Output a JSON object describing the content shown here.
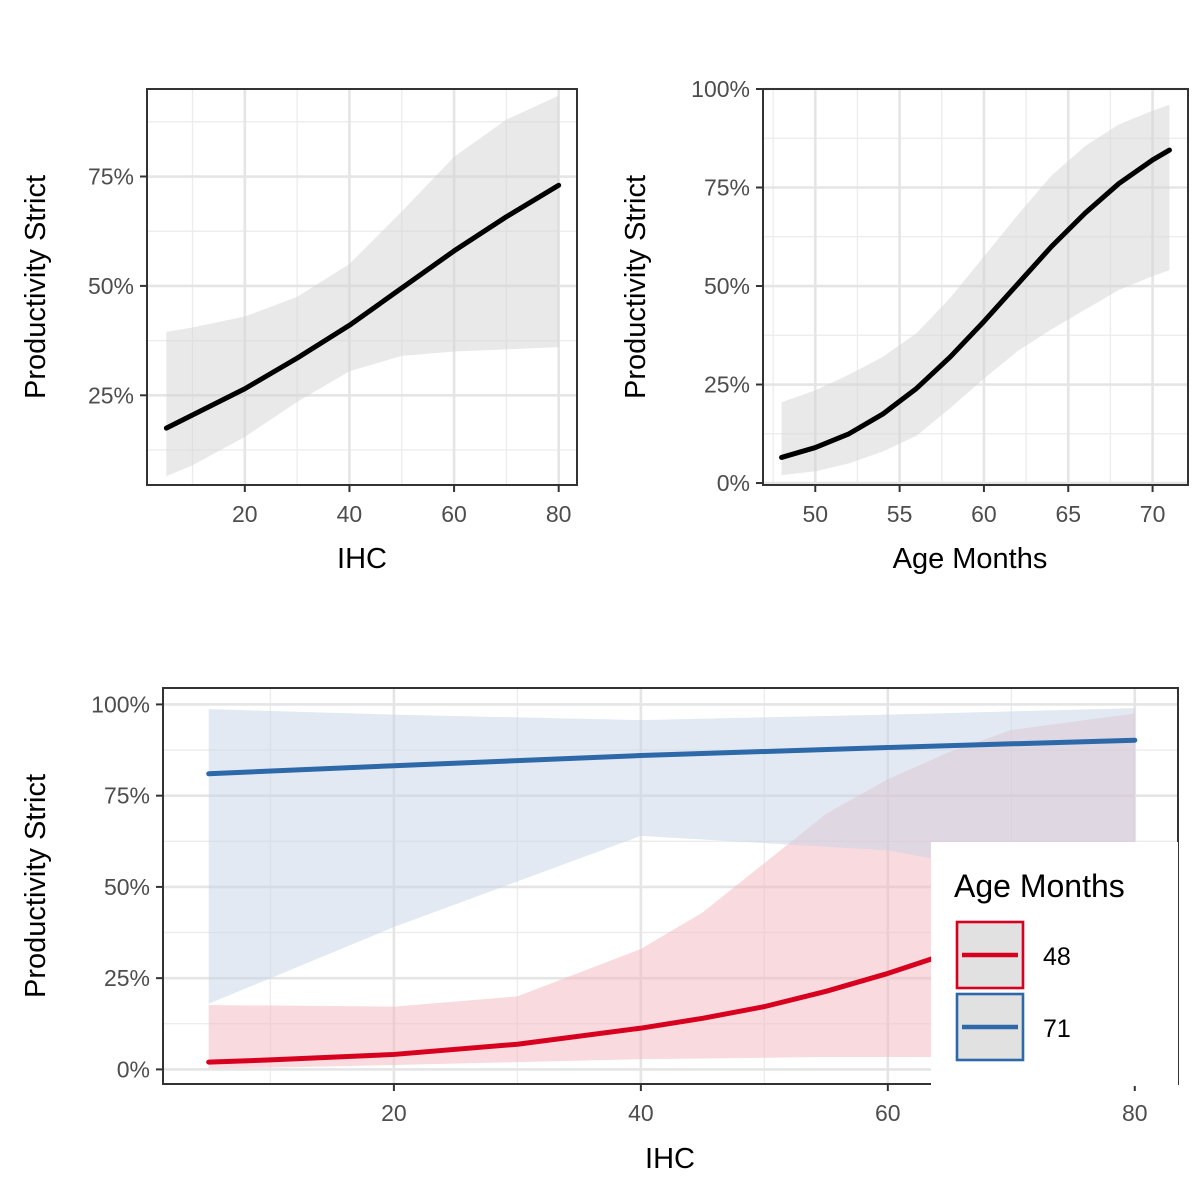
{
  "chart_data": [
    {
      "type": "line",
      "xlabel": "IHC",
      "ylabel": "Productivity Strict",
      "xlim": [
        1.3,
        83.5
      ],
      "ylim": [
        0.045,
        0.95
      ],
      "x_ticks": [
        20,
        40,
        60,
        80
      ],
      "x_tick_labels": [
        "20",
        "40",
        "60",
        "80"
      ],
      "y_ticks": [
        0.25,
        0.5,
        0.75
      ],
      "y_tick_labels": [
        "25%",
        "50%",
        "75%"
      ],
      "grid": true,
      "legend": "none",
      "series": [
        {
          "color": "#000000",
          "band_color": "#d3d3d3",
          "x": [
            5,
            10,
            20,
            30,
            40,
            50,
            60,
            70,
            80
          ],
          "y": [
            0.175,
            0.205,
            0.265,
            0.335,
            0.41,
            0.495,
            0.58,
            0.658,
            0.73
          ],
          "lower": [
            0.065,
            0.09,
            0.155,
            0.235,
            0.305,
            0.34,
            0.35,
            0.355,
            0.36
          ],
          "upper": [
            0.395,
            0.405,
            0.43,
            0.475,
            0.55,
            0.67,
            0.795,
            0.88,
            0.935
          ]
        }
      ]
    },
    {
      "type": "line",
      "xlabel": "Age Months",
      "ylabel": "Productivity Strict",
      "xlim": [
        46.9,
        72.1
      ],
      "ylim": [
        -0.005,
        1.0
      ],
      "x_ticks": [
        50,
        55,
        60,
        65,
        70
      ],
      "x_tick_labels": [
        "50",
        "55",
        "60",
        "65",
        "70"
      ],
      "y_ticks": [
        0,
        0.25,
        0.5,
        0.75,
        1.0
      ],
      "y_tick_labels": [
        "0%",
        "25%",
        "50%",
        "75%",
        "100%"
      ],
      "grid": true,
      "legend": "none",
      "series": [
        {
          "color": "#000000",
          "band_color": "#d3d3d3",
          "x": [
            48,
            50,
            52,
            54,
            56,
            58,
            60,
            62,
            64,
            66,
            68,
            70,
            71
          ],
          "y": [
            0.065,
            0.09,
            0.125,
            0.175,
            0.24,
            0.32,
            0.41,
            0.505,
            0.6,
            0.685,
            0.76,
            0.82,
            0.845
          ],
          "lower": [
            0.02,
            0.03,
            0.05,
            0.08,
            0.12,
            0.19,
            0.265,
            0.335,
            0.39,
            0.44,
            0.49,
            0.525,
            0.54
          ],
          "upper": [
            0.205,
            0.235,
            0.275,
            0.32,
            0.38,
            0.47,
            0.575,
            0.68,
            0.78,
            0.855,
            0.91,
            0.945,
            0.96
          ]
        }
      ]
    },
    {
      "type": "line",
      "xlabel": "IHC",
      "ylabel": "Productivity Strict",
      "xlim": [
        1.3,
        83.5
      ],
      "ylim": [
        -0.04,
        1.045
      ],
      "x_ticks": [
        20,
        40,
        60,
        80
      ],
      "x_tick_labels": [
        "20",
        "40",
        "60",
        "80"
      ],
      "y_ticks": [
        0,
        0.25,
        0.5,
        0.75,
        1.0
      ],
      "y_tick_labels": [
        "0%",
        "25%",
        "50%",
        "75%",
        "100%"
      ],
      "grid": true,
      "legend": "right",
      "legend_title": "Age Months",
      "series": [
        {
          "name": "48",
          "color": "#d7001e",
          "band_color": "#f4b5bd",
          "x": [
            5,
            10,
            20,
            30,
            40,
            45,
            50,
            55,
            60,
            65,
            70,
            80
          ],
          "y": [
            0.02,
            0.026,
            0.041,
            0.069,
            0.113,
            0.14,
            0.172,
            0.214,
            0.263,
            0.319,
            0.38,
            0.52
          ],
          "lower": [
            0.003,
            0.005,
            0.012,
            0.02,
            0.028,
            0.03,
            0.032,
            0.034,
            0.034,
            0.034,
            0.034,
            0.034
          ],
          "upper": [
            0.176,
            0.175,
            0.172,
            0.2,
            0.33,
            0.43,
            0.565,
            0.7,
            0.795,
            0.87,
            0.93,
            0.975
          ]
        },
        {
          "name": "71",
          "color": "#2d68a8",
          "band_color": "#c5d4e6",
          "x": [
            5,
            20,
            40,
            60,
            80
          ],
          "y": [
            0.81,
            0.832,
            0.86,
            0.882,
            0.902
          ],
          "lower": [
            0.18,
            0.39,
            0.64,
            0.6,
            0.48
          ],
          "upper": [
            0.987,
            0.972,
            0.957,
            0.972,
            0.99
          ]
        }
      ]
    }
  ]
}
